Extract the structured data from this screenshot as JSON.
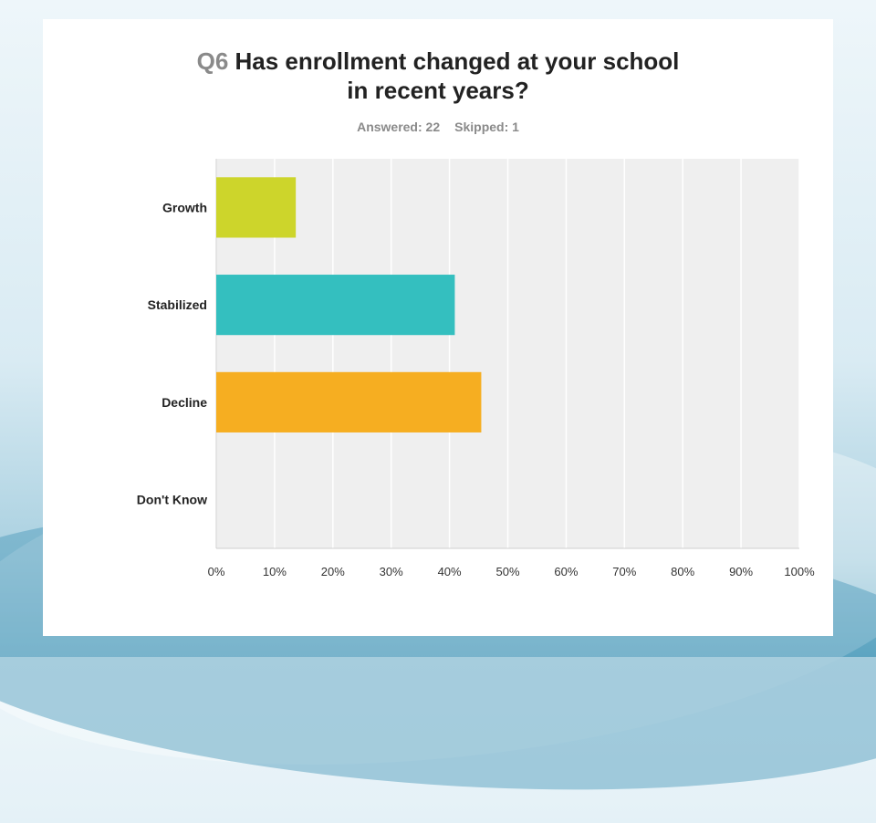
{
  "title": {
    "qnum": "Q6",
    "line1": "Has enrollment changed at your school",
    "line2": "in recent years?"
  },
  "meta": {
    "answered": "Answered: 22",
    "skipped": "Skipped: 1"
  },
  "chart_data": {
    "type": "bar",
    "orientation": "horizontal",
    "categories": [
      "Growth",
      "Stabilized",
      "Decline",
      "Don't Know"
    ],
    "values": [
      13.64,
      40.91,
      45.45,
      0
    ],
    "colors": [
      "#cdd52b",
      "#34bfbf",
      "#f6ae21",
      "#cccccc"
    ],
    "xlim": [
      0,
      100
    ],
    "ticks": [
      "0%",
      "10%",
      "20%",
      "30%",
      "40%",
      "50%",
      "60%",
      "70%",
      "80%",
      "90%",
      "100%"
    ],
    "grid": true,
    "plot_background": "#efefef"
  }
}
